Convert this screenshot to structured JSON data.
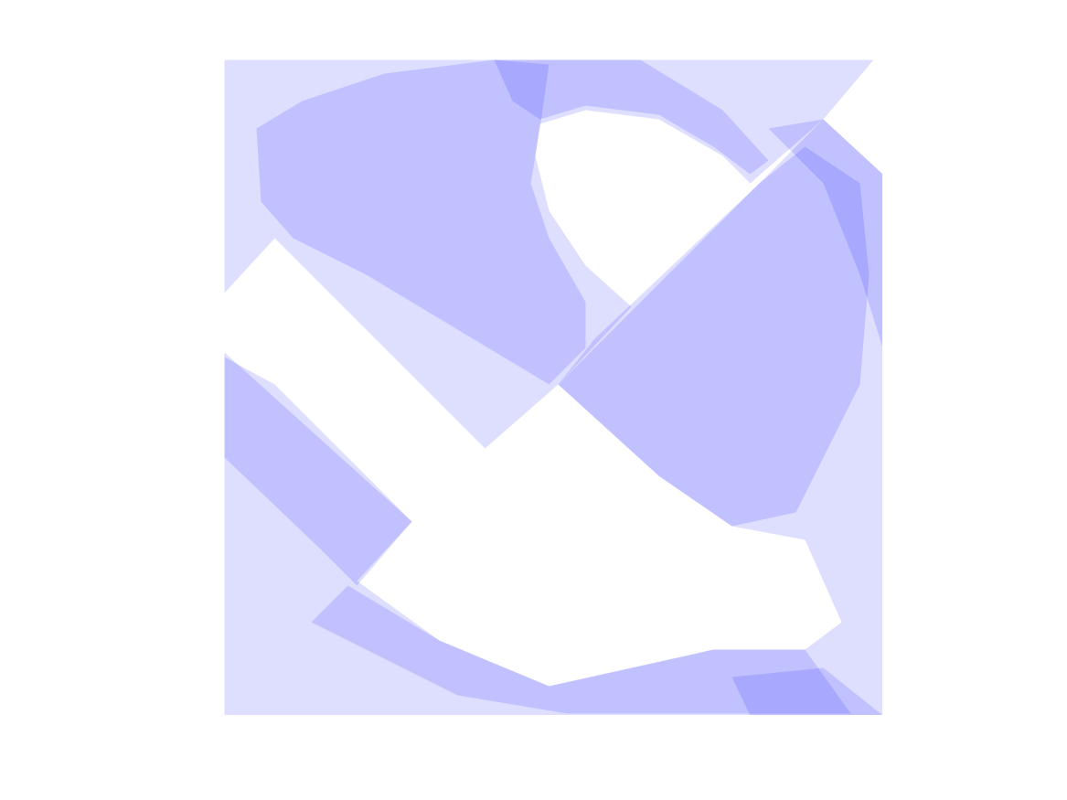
{
  "chart_data": {
    "type": "polygon",
    "color": "#0000ff",
    "tick_labels": false,
    "xlim": [
      0,
      722
    ],
    "ylim": [
      0,
      720
    ],
    "series": [
      {
        "x": [
          2,
          712,
          657,
          577,
          547,
          477,
          397,
          347,
          342,
          357,
          397,
          447,
          367,
          287,
          57,
          2
        ],
        "y": [
          717,
          717,
          652,
          582,
          612,
          652,
          662,
          647,
          612,
          552,
          492,
          447,
          362,
          292,
          522,
          462
        ]
      },
      {
        "x": [
          2,
          207,
          147,
          237,
          357,
          537,
          637,
          677,
          637,
          557,
          477,
          367,
          657,
          722,
          722,
          2
        ],
        "y": [
          397,
          212,
          147,
          82,
          32,
          72,
          72,
          102,
          192,
          207,
          262,
          362,
          652,
          592,
          0,
          0
        ]
      },
      {
        "x": [
          37,
          87,
          177,
          297,
          357,
          347,
          337,
          357,
          397,
          397,
          357,
          257,
          157,
          77,
          42
        ],
        "y": [
          642,
          672,
          702,
          717,
          712,
          642,
          582,
          522,
          452,
          402,
          362,
          422,
          482,
          522,
          562
        ]
      },
      {
        "x": [
          407,
          587,
          637,
          697,
          707,
          697,
          657,
          627,
          557,
          477,
          367
        ],
        "y": [
          412,
          582,
          622,
          582,
          482,
          362,
          282,
          222,
          207,
          262,
          362
        ]
      },
      {
        "x": [
          597,
          657,
          722,
          722,
          697,
          657
        ],
        "y": [
          642,
          652,
          592,
          402,
          482,
          582
        ]
      },
      {
        "x": [
          2,
          57,
          207,
          147,
          107,
          2
        ],
        "y": [
          392,
          362,
          212,
          142,
          182,
          282
        ]
      },
      {
        "x": [
          137,
          237,
          357,
          537,
          637,
          687,
          377,
          257,
          97
        ],
        "y": [
          142,
          82,
          32,
          72,
          72,
          2,
          2,
          22,
          102
        ]
      },
      {
        "x": [
          297,
          457,
          547,
          597,
          577,
          537,
          477,
          397,
          347,
          317
        ],
        "y": [
          717,
          717,
          662,
          607,
          592,
          622,
          657,
          667,
          652,
          672
        ]
      },
      {
        "x": [
          557,
          657,
          722,
          577
        ],
        "y": [
          42,
          52,
          0,
          0
        ]
      }
    ]
  }
}
